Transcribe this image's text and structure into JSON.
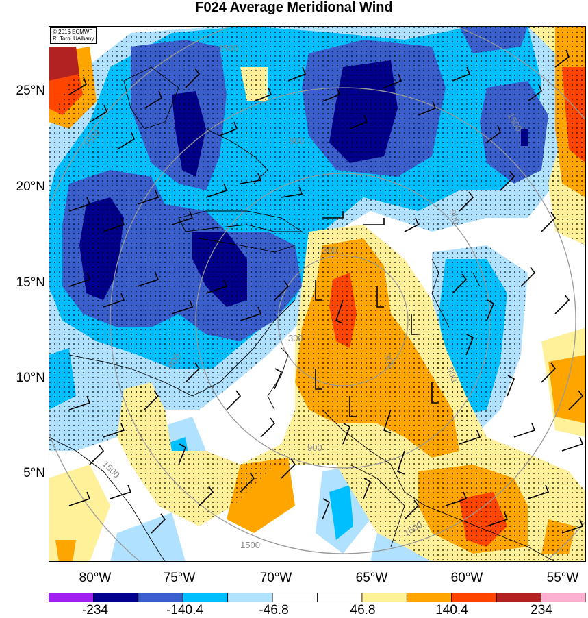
{
  "title": "F024 Average Meridional Wind",
  "credit": [
    "© 2016 ECMWF",
    "R. Torn, UAlbany"
  ],
  "lat_labels": [
    "25°N",
    "20°N",
    "15°N",
    "10°N",
    "5°N"
  ],
  "lon_labels": [
    "80°W",
    "75°W",
    "70°W",
    "65°W",
    "60°W",
    "55°W"
  ],
  "colorbar": {
    "colors": [
      "#a020f0",
      "#00008b",
      "#3a5fcd",
      "#00bfff",
      "#b0e2ff",
      "#ffffff",
      "#ffffff",
      "#fff09a",
      "#ffa500",
      "#ff4500",
      "#b22222",
      "#ffb0d0"
    ],
    "labels": [
      "-234",
      "-140.4",
      "-46.8",
      "46.8",
      "140.4",
      "234"
    ]
  },
  "contour_labels": [
    "1500",
    "1500",
    "1500",
    "900",
    "900",
    "900",
    "900",
    "300",
    "300",
    "300",
    "1500",
    "1500",
    "1500",
    "900"
  ],
  "colors": {
    "dark_blue": "#00008b",
    "mid_blue": "#3a5fcd",
    "cyan": "#00bfff",
    "light_blue": "#b0e2ff",
    "yellow": "#fff09a",
    "orange": "#ffa500",
    "red_orange": "#ff4500",
    "dark_red": "#b22222",
    "contour": "#999999"
  }
}
